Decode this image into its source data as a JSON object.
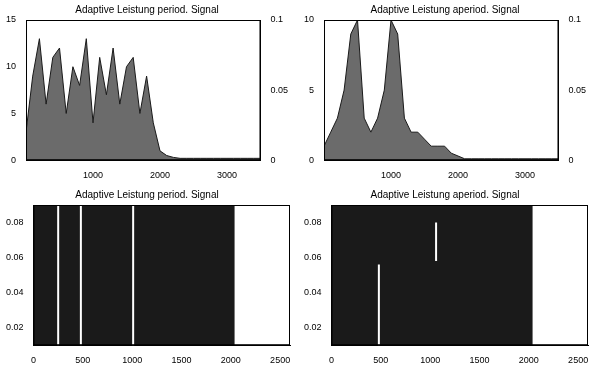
{
  "chart_data": [
    {
      "type": "line",
      "title": "Adaptive Leistung period. Signal",
      "xlim": [
        0,
        3500
      ],
      "xticks": [
        1000,
        2000,
        3000
      ],
      "ylim": [
        0,
        15
      ],
      "yticks": [
        0,
        5,
        10,
        15
      ],
      "y2lim": [
        0,
        0.1
      ],
      "y2ticks": [
        0,
        0.05,
        0.1
      ],
      "grid": false,
      "series": [
        {
          "type": "area",
          "color": "#6b6b6b",
          "x": [
            0,
            100,
            200,
            300,
            400,
            500,
            600,
            700,
            800,
            900,
            1000,
            1100,
            1200,
            1300,
            1400,
            1500,
            1600,
            1700,
            1800,
            1900,
            2000,
            2100,
            2200,
            2300,
            2400,
            2500,
            2600,
            2700,
            2800,
            2900,
            3000,
            3100,
            3200,
            3300,
            3400,
            3500
          ],
          "values": [
            3,
            9,
            13,
            6,
            11,
            12,
            5,
            10,
            8,
            13,
            4,
            11,
            7,
            12,
            6,
            10,
            11,
            5,
            9,
            4,
            1,
            0.5,
            0.3,
            0.2,
            0.2,
            0.2,
            0.2,
            0.2,
            0.2,
            0.2,
            0.2,
            0.2,
            0.2,
            0.2,
            0.2,
            0.2
          ]
        }
      ]
    },
    {
      "type": "line",
      "title": "Adaptive Leistung aperiod. Signal",
      "xlim": [
        0,
        3500
      ],
      "xticks": [
        1000,
        2000,
        3000
      ],
      "ylim": [
        0,
        10
      ],
      "yticks": [
        0,
        5,
        10
      ],
      "y2lim": [
        0,
        0.1
      ],
      "y2ticks": [
        0,
        0.05,
        0.1
      ],
      "grid": false,
      "series": [
        {
          "type": "area",
          "color": "#6b6b6b",
          "x": [
            0,
            100,
            200,
            300,
            400,
            500,
            600,
            700,
            800,
            900,
            1000,
            1100,
            1200,
            1300,
            1400,
            1500,
            1600,
            1700,
            1800,
            1900,
            2000,
            2100,
            2200,
            2300,
            2400,
            2500,
            2600,
            2700,
            2800,
            2900,
            3000,
            3100,
            3200,
            3300,
            3400,
            3500
          ],
          "values": [
            1,
            2,
            3,
            5,
            9,
            10,
            3,
            2,
            3,
            5,
            10,
            9,
            3,
            2,
            2,
            1.5,
            1,
            1,
            1,
            0.5,
            0.3,
            0.1,
            0.1,
            0.1,
            0.1,
            0.1,
            0.1,
            0.1,
            0.1,
            0.1,
            0.1,
            0.1,
            0.1,
            0.1,
            0.1,
            0.1
          ]
        }
      ]
    },
    {
      "type": "line",
      "title": "Adaptive Leistung period. Signal",
      "xlim": [
        0,
        2600
      ],
      "xticks": [
        0,
        500,
        1000,
        1500,
        2000,
        2500
      ],
      "ylim": [
        0.01,
        0.09
      ],
      "yticks": [
        0.02,
        0.04,
        0.06,
        0.08
      ],
      "grid": false,
      "series": [
        {
          "type": "area",
          "color": "#1a1a1a",
          "x": [
            0,
            2040
          ],
          "values": [
            0.09,
            0.09
          ]
        },
        {
          "type": "line",
          "color": "#ffffff",
          "x": [
            250,
            250
          ],
          "values": [
            0.01,
            0.09
          ]
        },
        {
          "type": "line",
          "color": "#ffffff",
          "x": [
            480,
            480
          ],
          "values": [
            0.01,
            0.09
          ]
        },
        {
          "type": "line",
          "color": "#ffffff",
          "x": [
            1010,
            1010
          ],
          "values": [
            0.01,
            0.09
          ]
        }
      ]
    },
    {
      "type": "line",
      "title": "Adaptive Leistung aperiod. Signal",
      "xlim": [
        0,
        2600
      ],
      "xticks": [
        0,
        500,
        1000,
        1500,
        2000,
        2500
      ],
      "ylim": [
        0.01,
        0.09
      ],
      "yticks": [
        0.02,
        0.04,
        0.06,
        0.08
      ],
      "grid": false,
      "series": [
        {
          "type": "area",
          "color": "#1a1a1a",
          "x": [
            0,
            2040
          ],
          "values": [
            0.09,
            0.09
          ]
        },
        {
          "type": "line",
          "color": "#ffffff",
          "x": [
            480,
            480
          ],
          "values": [
            0.01,
            0.056
          ]
        },
        {
          "type": "line",
          "color": "#ffffff",
          "x": [
            1060,
            1060
          ],
          "values": [
            0.058,
            0.08
          ]
        }
      ]
    }
  ]
}
